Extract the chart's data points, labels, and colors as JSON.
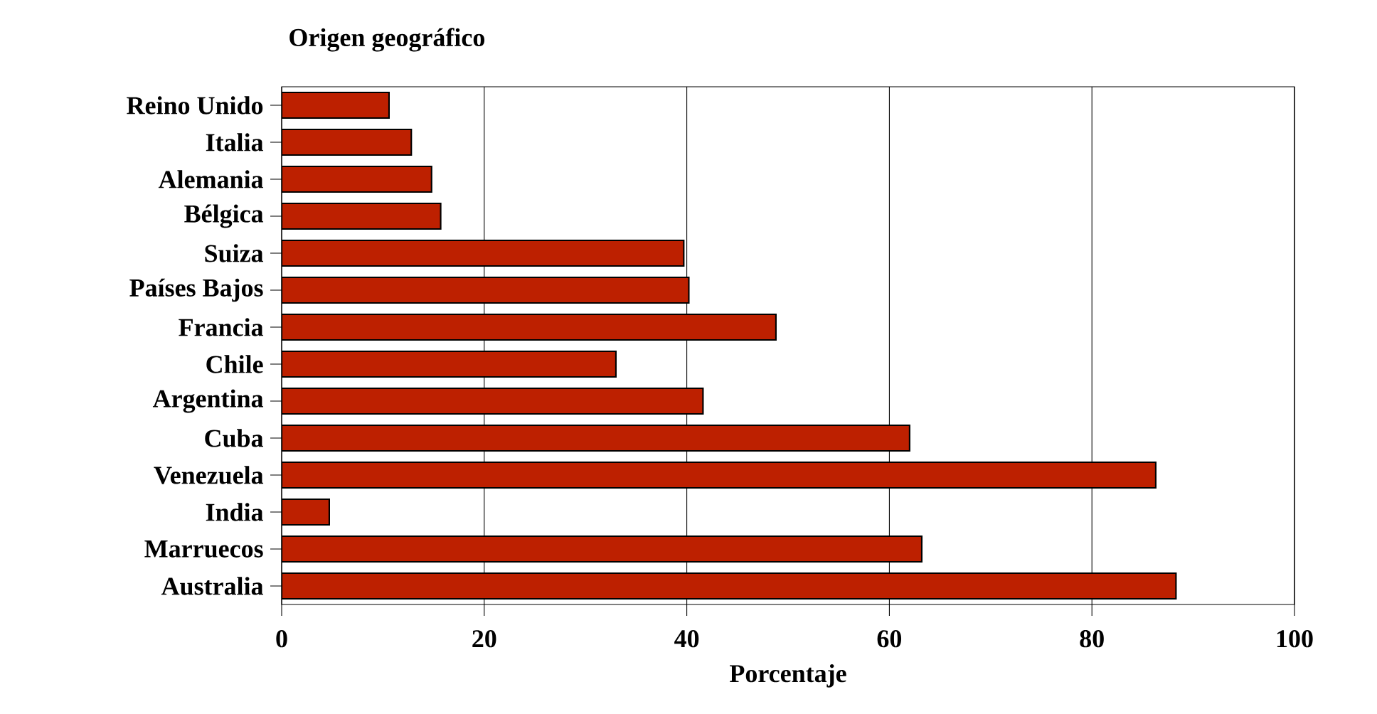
{
  "chart_data": {
    "type": "bar",
    "orientation": "horizontal",
    "title": "Origen geográfico",
    "xlabel": "Porcentaje",
    "categories": [
      "Reino Unido",
      "Italia",
      "Alemania",
      "Bélgica",
      "Suiza",
      "Países Bajos",
      "Francia",
      "Chile",
      "Argentina",
      "Cuba",
      "Venezuela",
      "India",
      "Marruecos",
      "Australia"
    ],
    "values": [
      10.6,
      12.8,
      14.8,
      15.7,
      39.7,
      40.2,
      48.8,
      33.0,
      41.6,
      62.0,
      86.3,
      4.7,
      63.2,
      88.3
    ],
    "color": "#bd2000",
    "xlim": [
      0,
      100
    ],
    "xticks": [
      0,
      20,
      40,
      60,
      80,
      100
    ],
    "grid": "x"
  }
}
